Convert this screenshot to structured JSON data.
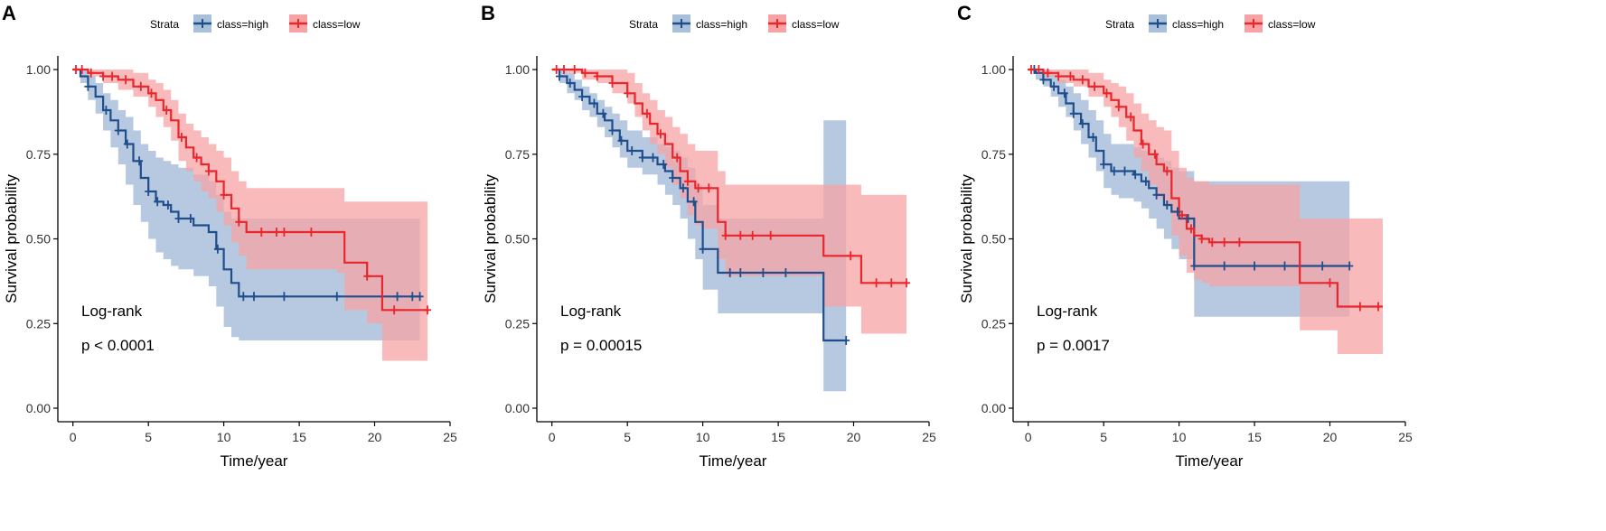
{
  "figure": {
    "panels": [
      "A",
      "B",
      "C"
    ]
  },
  "colors": {
    "high": "#1f4e8c",
    "high_ci": "#a9c0db",
    "low": "#e8262c",
    "low_ci": "#f7a3a6",
    "axis": "#000000",
    "tick_text": "#333333"
  },
  "chart_data": [
    {
      "panel": "A",
      "type": "line",
      "subtype": "kaplan-meier",
      "legend": {
        "title": "Strata",
        "entries": [
          "class=high",
          "class=low"
        ],
        "placement": "top-center"
      },
      "xlabel": "Time/year",
      "ylabel": "Survival probability",
      "xlim": [
        -1,
        25
      ],
      "ylim": [
        -0.04,
        1.04
      ],
      "xticks": [
        0,
        5,
        10,
        15,
        20,
        25
      ],
      "yticks": [
        "0.00",
        "0.25",
        "0.50",
        "0.75",
        "1.00"
      ],
      "annotation": [
        "Log-rank",
        "p < 0.0001"
      ],
      "series": [
        {
          "name": "class=high",
          "x": [
            0,
            0.5,
            1,
            1.5,
            2,
            2.5,
            3,
            3.5,
            4,
            4.5,
            5,
            5.5,
            6,
            6.5,
            7,
            8,
            9,
            9.5,
            10,
            10.5,
            11,
            12,
            14,
            17,
            20,
            22.5,
            23
          ],
          "y": [
            1,
            0.98,
            0.95,
            0.92,
            0.88,
            0.85,
            0.82,
            0.78,
            0.73,
            0.68,
            0.64,
            0.61,
            0.6,
            0.58,
            0.56,
            0.54,
            0.52,
            0.47,
            0.41,
            0.37,
            0.33,
            0.33,
            0.33,
            0.33,
            0.33,
            0.33,
            0.33
          ],
          "lower": [
            1,
            0.96,
            0.91,
            0.87,
            0.82,
            0.77,
            0.72,
            0.66,
            0.6,
            0.55,
            0.5,
            0.46,
            0.44,
            0.42,
            0.41,
            0.39,
            0.36,
            0.3,
            0.24,
            0.21,
            0.2,
            0.2,
            0.2,
            0.2,
            0.2,
            0.2,
            0.2
          ],
          "upper": [
            1,
            1,
            0.98,
            0.96,
            0.93,
            0.91,
            0.88,
            0.86,
            0.82,
            0.78,
            0.76,
            0.74,
            0.73,
            0.72,
            0.71,
            0.69,
            0.67,
            0.63,
            0.58,
            0.56,
            0.56,
            0.56,
            0.56,
            0.56,
            0.56,
            0.56,
            0.56
          ],
          "censor_x": [
            1,
            2.2,
            3,
            3.6,
            4.4,
            5,
            5.6,
            6.3,
            7,
            7.8,
            9.6,
            11.3,
            12,
            14,
            17.5,
            21.5,
            22.5,
            23
          ]
        },
        {
          "name": "class=low",
          "x": [
            0,
            1,
            2,
            3,
            4,
            5,
            5.5,
            6,
            6.5,
            7,
            7.5,
            8,
            8.5,
            9,
            9.5,
            10,
            10.5,
            11,
            11.5,
            13,
            17.5,
            18,
            19.5,
            20.5,
            23.5
          ],
          "y": [
            1,
            0.99,
            0.98,
            0.97,
            0.95,
            0.93,
            0.91,
            0.88,
            0.85,
            0.8,
            0.77,
            0.74,
            0.72,
            0.7,
            0.67,
            0.63,
            0.59,
            0.55,
            0.52,
            0.52,
            0.52,
            0.43,
            0.39,
            0.29,
            0.29
          ],
          "lower": [
            1,
            0.98,
            0.96,
            0.94,
            0.92,
            0.89,
            0.86,
            0.83,
            0.79,
            0.73,
            0.7,
            0.67,
            0.64,
            0.62,
            0.58,
            0.54,
            0.49,
            0.45,
            0.41,
            0.41,
            0.4,
            0.29,
            0.25,
            0.14,
            0.14
          ],
          "upper": [
            1,
            1,
            1,
            1,
            0.99,
            0.97,
            0.96,
            0.94,
            0.91,
            0.87,
            0.84,
            0.82,
            0.8,
            0.78,
            0.76,
            0.74,
            0.7,
            0.67,
            0.65,
            0.65,
            0.65,
            0.61,
            0.61,
            0.61,
            0.61
          ],
          "censor_x": [
            0.2,
            0.6,
            1.2,
            2,
            2.6,
            3.5,
            4.5,
            5.2,
            6.2,
            7.2,
            8.2,
            9,
            10,
            11,
            12.5,
            13.5,
            14,
            15.8,
            19.5,
            21.3,
            23.5
          ]
        }
      ]
    },
    {
      "panel": "B",
      "type": "line",
      "subtype": "kaplan-meier",
      "legend": {
        "title": "Strata",
        "entries": [
          "class=high",
          "class=low"
        ],
        "placement": "top-center"
      },
      "xlabel": "Time/year",
      "ylabel": "Survival probability",
      "xlim": [
        -1,
        25
      ],
      "ylim": [
        -0.04,
        1.04
      ],
      "xticks": [
        0,
        5,
        10,
        15,
        20,
        25
      ],
      "yticks": [
        "0.00",
        "0.25",
        "0.50",
        "0.75",
        "1.00"
      ],
      "annotation": [
        "Log-rank",
        "p = 0.00015"
      ],
      "series": [
        {
          "name": "class=high",
          "x": [
            0,
            0.5,
            1,
            1.5,
            2,
            2.5,
            3,
            3.5,
            4,
            4.5,
            5,
            6,
            7,
            7.5,
            8,
            8.5,
            9,
            9.5,
            10,
            11,
            12,
            15,
            18,
            19.5
          ],
          "y": [
            1,
            0.98,
            0.96,
            0.94,
            0.92,
            0.9,
            0.87,
            0.85,
            0.82,
            0.79,
            0.76,
            0.74,
            0.72,
            0.7,
            0.68,
            0.65,
            0.61,
            0.55,
            0.47,
            0.4,
            0.4,
            0.4,
            0.2,
            0.2
          ],
          "lower": [
            1,
            0.96,
            0.93,
            0.91,
            0.88,
            0.86,
            0.83,
            0.8,
            0.77,
            0.74,
            0.71,
            0.69,
            0.66,
            0.63,
            0.6,
            0.56,
            0.5,
            0.44,
            0.35,
            0.28,
            0.28,
            0.28,
            0.05,
            0.05
          ],
          "upper": [
            1,
            1,
            0.99,
            0.97,
            0.95,
            0.93,
            0.91,
            0.89,
            0.87,
            0.85,
            0.82,
            0.8,
            0.78,
            0.77,
            0.76,
            0.74,
            0.71,
            0.66,
            0.6,
            0.56,
            0.56,
            0.56,
            0.85,
            0.85
          ],
          "censor_x": [
            0.5,
            1.2,
            2,
            2.8,
            3.4,
            4,
            4.6,
            5.3,
            6,
            6.7,
            7.4,
            8,
            8.7,
            9.4,
            10,
            11.8,
            12.5,
            14,
            15.5,
            19.5
          ]
        },
        {
          "name": "class=low",
          "x": [
            0,
            1,
            2,
            3,
            4,
            5,
            5.5,
            6,
            6.5,
            7,
            7.5,
            8,
            8.5,
            9,
            9.5,
            10,
            11,
            11.5,
            18,
            20.5,
            23.5
          ],
          "y": [
            1,
            1,
            0.99,
            0.98,
            0.96,
            0.93,
            0.9,
            0.87,
            0.84,
            0.81,
            0.78,
            0.74,
            0.7,
            0.67,
            0.65,
            0.65,
            0.55,
            0.51,
            0.45,
            0.37,
            0.37
          ],
          "lower": [
            1,
            0.99,
            0.97,
            0.96,
            0.93,
            0.9,
            0.86,
            0.82,
            0.78,
            0.75,
            0.71,
            0.66,
            0.62,
            0.57,
            0.54,
            0.53,
            0.44,
            0.39,
            0.3,
            0.22,
            0.22
          ],
          "upper": [
            1,
            1,
            1,
            1,
            1,
            0.99,
            0.96,
            0.93,
            0.91,
            0.88,
            0.86,
            0.83,
            0.81,
            0.78,
            0.76,
            0.76,
            0.7,
            0.66,
            0.66,
            0.63,
            0.63
          ],
          "censor_x": [
            0.3,
            0.8,
            1.5,
            2.2,
            3,
            4,
            5,
            6.3,
            7.2,
            8.3,
            9,
            9.7,
            10.4,
            11.5,
            12.5,
            13.3,
            14.5,
            19.8,
            21.5,
            22.5,
            23.5
          ]
        }
      ]
    },
    {
      "panel": "C",
      "type": "line",
      "subtype": "kaplan-meier",
      "legend": {
        "title": "Strata",
        "entries": [
          "class=high",
          "class=low"
        ],
        "placement": "top-center"
      },
      "xlabel": "Time/year",
      "ylabel": "Survival probability",
      "xlim": [
        -1,
        25
      ],
      "ylim": [
        -0.04,
        1.04
      ],
      "xticks": [
        0,
        5,
        10,
        15,
        20,
        25
      ],
      "yticks": [
        "0.00",
        "0.25",
        "0.50",
        "0.75",
        "1.00"
      ],
      "annotation": [
        "Log-rank",
        "p = 0.0017"
      ],
      "series": [
        {
          "name": "class=high",
          "x": [
            0,
            0.5,
            1,
            1.5,
            2,
            2.5,
            3,
            3.5,
            4,
            4.5,
            5,
            5.5,
            6,
            7,
            7.5,
            8,
            8.5,
            9,
            9.5,
            10,
            11,
            12,
            15,
            21.3
          ],
          "y": [
            1,
            0.99,
            0.97,
            0.95,
            0.93,
            0.9,
            0.87,
            0.84,
            0.8,
            0.76,
            0.72,
            0.7,
            0.7,
            0.69,
            0.67,
            0.65,
            0.63,
            0.6,
            0.58,
            0.56,
            0.42,
            0.42,
            0.42,
            0.42
          ],
          "lower": [
            1,
            0.97,
            0.95,
            0.92,
            0.89,
            0.86,
            0.82,
            0.78,
            0.74,
            0.7,
            0.65,
            0.63,
            0.62,
            0.61,
            0.59,
            0.56,
            0.53,
            0.5,
            0.47,
            0.44,
            0.27,
            0.27,
            0.27,
            0.27
          ],
          "upper": [
            1,
            1,
            1,
            0.99,
            0.97,
            0.95,
            0.93,
            0.91,
            0.88,
            0.85,
            0.81,
            0.78,
            0.78,
            0.77,
            0.76,
            0.75,
            0.74,
            0.73,
            0.71,
            0.7,
            0.67,
            0.67,
            0.67,
            0.67
          ],
          "censor_x": [
            0.4,
            1,
            1.7,
            2.4,
            3,
            3.6,
            4.3,
            5,
            5.7,
            6.4,
            7.1,
            7.8,
            8.5,
            9.2,
            9.9,
            10.6,
            11,
            13,
            15,
            17,
            19.5,
            21.3
          ]
        },
        {
          "name": "class=low",
          "x": [
            0,
            1,
            2,
            3,
            4,
            5,
            5.5,
            6,
            6.5,
            7,
            7.5,
            8,
            8.5,
            9,
            9.5,
            10,
            10.5,
            11,
            11.5,
            12,
            18,
            20.5,
            23.5
          ],
          "y": [
            1,
            0.99,
            0.98,
            0.97,
            0.95,
            0.93,
            0.91,
            0.89,
            0.86,
            0.82,
            0.78,
            0.75,
            0.72,
            0.7,
            0.62,
            0.57,
            0.53,
            0.51,
            0.5,
            0.49,
            0.37,
            0.3,
            0.3
          ],
          "lower": [
            1,
            0.98,
            0.96,
            0.95,
            0.92,
            0.89,
            0.86,
            0.83,
            0.79,
            0.74,
            0.7,
            0.66,
            0.62,
            0.6,
            0.51,
            0.45,
            0.4,
            0.38,
            0.37,
            0.36,
            0.23,
            0.16,
            0.16
          ],
          "upper": [
            1,
            1,
            1,
            1,
            0.99,
            0.97,
            0.96,
            0.95,
            0.93,
            0.9,
            0.87,
            0.85,
            0.83,
            0.82,
            0.76,
            0.71,
            0.68,
            0.67,
            0.67,
            0.66,
            0.56,
            0.56,
            0.56
          ],
          "censor_x": [
            0.2,
            0.7,
            1.3,
            2,
            2.8,
            3.6,
            4.4,
            5.2,
            6,
            6.8,
            7.6,
            8.4,
            9.2,
            10.2,
            10.8,
            11.5,
            12.2,
            13,
            14,
            20,
            22,
            23.2
          ]
        }
      ]
    }
  ]
}
